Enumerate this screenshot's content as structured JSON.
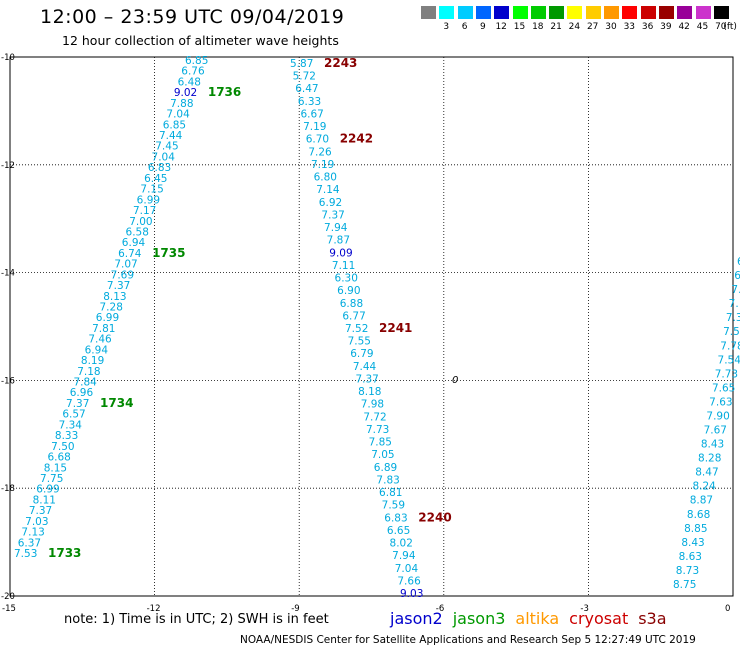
{
  "header": {
    "title": "12:00 – 23:59 UTC 09/04/2019",
    "subtitle": "12 hour collection of altimeter wave heights"
  },
  "legend": {
    "unit": "(ft)",
    "items": [
      {
        "label": "",
        "color": "#808080"
      },
      {
        "label": "3",
        "color": "#00ffff"
      },
      {
        "label": "6",
        "color": "#00ccff"
      },
      {
        "label": "9",
        "color": "#0066ff"
      },
      {
        "label": "12",
        "color": "#0000cc"
      },
      {
        "label": "15",
        "color": "#00ff00"
      },
      {
        "label": "18",
        "color": "#00cc00"
      },
      {
        "label": "21",
        "color": "#009900"
      },
      {
        "label": "24",
        "color": "#ffff00"
      },
      {
        "label": "27",
        "color": "#ffcc00"
      },
      {
        "label": "30",
        "color": "#ff9900"
      },
      {
        "label": "33",
        "color": "#ff0000"
      },
      {
        "label": "36",
        "color": "#cc0000"
      },
      {
        "label": "39",
        "color": "#990000"
      },
      {
        "label": "42",
        "color": "#990099"
      },
      {
        "label": "45",
        "color": "#cc33cc"
      },
      {
        "label": "70",
        "color": "#000000"
      }
    ]
  },
  "map": {
    "lon_range": [
      -15,
      0
    ],
    "lat_range": [
      -20,
      -10
    ],
    "lon_ticks": [
      "-15",
      "-12",
      "-9",
      "-6",
      "-3",
      "0"
    ],
    "lat_ticks": [
      "-10",
      "-12",
      "-14",
      "-16",
      "-18",
      "-20"
    ],
    "grid": true,
    "colors": {
      "cyan": "#00aadd",
      "blue": "#0000cc",
      "green": "#008800",
      "darkred": "#880000"
    },
    "track_a": {
      "points": [
        [
          "6.85",
          "cyan"
        ],
        [
          "6.76",
          "cyan"
        ],
        [
          "6.48",
          "cyan"
        ],
        [
          "9.02",
          "blue"
        ],
        [
          "7.88",
          "cyan"
        ],
        [
          "7.04",
          "cyan"
        ],
        [
          "6.85",
          "cyan"
        ],
        [
          "7.44",
          "cyan"
        ],
        [
          "7.45",
          "cyan"
        ],
        [
          "7.04",
          "cyan"
        ],
        [
          "6.83",
          "cyan"
        ],
        [
          "6.45",
          "cyan"
        ],
        [
          "7.15",
          "cyan"
        ],
        [
          "6.99",
          "cyan"
        ],
        [
          "7.17",
          "cyan"
        ],
        [
          "7.00",
          "cyan"
        ],
        [
          "6.58",
          "cyan"
        ],
        [
          "6.94",
          "cyan"
        ],
        [
          "6.74",
          "cyan"
        ],
        [
          "7.07",
          "cyan"
        ],
        [
          "7.69",
          "cyan"
        ],
        [
          "7.37",
          "cyan"
        ],
        [
          "8.13",
          "cyan"
        ],
        [
          "7.28",
          "cyan"
        ],
        [
          "6.99",
          "cyan"
        ],
        [
          "7.81",
          "cyan"
        ],
        [
          "7.46",
          "cyan"
        ],
        [
          "6.94",
          "cyan"
        ],
        [
          "8.19",
          "cyan"
        ],
        [
          "7.18",
          "cyan"
        ],
        [
          "7.84",
          "cyan"
        ],
        [
          "6.96",
          "cyan"
        ],
        [
          "7.37",
          "cyan"
        ],
        [
          "6.57",
          "cyan"
        ],
        [
          "7.34",
          "cyan"
        ],
        [
          "8.33",
          "cyan"
        ],
        [
          "7.50",
          "cyan"
        ],
        [
          "6.68",
          "cyan"
        ],
        [
          "8.15",
          "cyan"
        ],
        [
          "7.75",
          "cyan"
        ],
        [
          "6.99",
          "cyan"
        ],
        [
          "8.11",
          "cyan"
        ],
        [
          "7.37",
          "cyan"
        ],
        [
          "7.03",
          "cyan"
        ],
        [
          "7.13",
          "cyan"
        ],
        [
          "6.37",
          "cyan"
        ],
        [
          "7.53",
          "cyan"
        ]
      ],
      "times": [
        {
          "label": "1736",
          "index": 3,
          "color": "green"
        },
        {
          "label": "1735",
          "index": 18,
          "color": "green"
        },
        {
          "label": "1734",
          "index": 32,
          "color": "green"
        },
        {
          "label": "1733",
          "index": 46,
          "color": "green"
        }
      ]
    },
    "track_b": {
      "points": [
        [
          "5.87",
          "cyan"
        ],
        [
          "5.72",
          "cyan"
        ],
        [
          "6.47",
          "cyan"
        ],
        [
          "6.33",
          "cyan"
        ],
        [
          "6.67",
          "cyan"
        ],
        [
          "7.19",
          "cyan"
        ],
        [
          "6.70",
          "cyan"
        ],
        [
          "7.26",
          "cyan"
        ],
        [
          "7.19",
          "cyan"
        ],
        [
          "6.80",
          "cyan"
        ],
        [
          "7.14",
          "cyan"
        ],
        [
          "6.92",
          "cyan"
        ],
        [
          "7.37",
          "cyan"
        ],
        [
          "7.94",
          "cyan"
        ],
        [
          "7.87",
          "cyan"
        ],
        [
          "9.09",
          "blue"
        ],
        [
          "7.11",
          "cyan"
        ],
        [
          "6.30",
          "cyan"
        ],
        [
          "6.90",
          "cyan"
        ],
        [
          "6.88",
          "cyan"
        ],
        [
          "6.77",
          "cyan"
        ],
        [
          "7.52",
          "cyan"
        ],
        [
          "7.55",
          "cyan"
        ],
        [
          "6.79",
          "cyan"
        ],
        [
          "7.44",
          "cyan"
        ],
        [
          "7.37",
          "cyan"
        ],
        [
          "8.18",
          "cyan"
        ],
        [
          "7.98",
          "cyan"
        ],
        [
          "7.72",
          "cyan"
        ],
        [
          "7.73",
          "cyan"
        ],
        [
          "7.85",
          "cyan"
        ],
        [
          "7.05",
          "cyan"
        ],
        [
          "6.89",
          "cyan"
        ],
        [
          "7.83",
          "cyan"
        ],
        [
          "6.81",
          "cyan"
        ],
        [
          "7.59",
          "cyan"
        ],
        [
          "6.83",
          "cyan"
        ],
        [
          "6.65",
          "cyan"
        ],
        [
          "8.02",
          "cyan"
        ],
        [
          "7.94",
          "cyan"
        ],
        [
          "7.04",
          "cyan"
        ],
        [
          "7.66",
          "cyan"
        ],
        [
          "9.03",
          "blue"
        ]
      ],
      "times": [
        {
          "label": "2243",
          "index": 0,
          "color": "darkred"
        },
        {
          "label": "2242",
          "index": 6,
          "color": "darkred"
        },
        {
          "label": "2241",
          "index": 21,
          "color": "darkred"
        },
        {
          "label": "2240",
          "index": 36,
          "color": "darkred"
        }
      ]
    },
    "track_c": {
      "points": [
        [
          "6",
          "cyan"
        ],
        [
          "6",
          "cyan"
        ],
        [
          "7.",
          "cyan"
        ],
        [
          "7.",
          "cyan"
        ],
        [
          "7.3",
          "cyan"
        ],
        [
          "7.5",
          "cyan"
        ],
        [
          "7.78",
          "cyan"
        ],
        [
          "7.54",
          "cyan"
        ],
        [
          "7.73",
          "cyan"
        ],
        [
          "7.65",
          "cyan"
        ],
        [
          "7.63",
          "cyan"
        ],
        [
          "7.90",
          "cyan"
        ],
        [
          "7.67",
          "cyan"
        ],
        [
          "8.43",
          "cyan"
        ],
        [
          "8.28",
          "cyan"
        ],
        [
          "8.47",
          "cyan"
        ],
        [
          "8.24",
          "cyan"
        ],
        [
          "8.87",
          "cyan"
        ],
        [
          "8.68",
          "cyan"
        ],
        [
          "8.85",
          "cyan"
        ],
        [
          "8.43",
          "cyan"
        ],
        [
          "8.63",
          "cyan"
        ],
        [
          "8.73",
          "cyan"
        ],
        [
          "8.75",
          "cyan"
        ]
      ]
    },
    "marker": {
      "label": "0"
    }
  },
  "footer": {
    "note": "note:  1) Time is in UTC;  2) SWH is in feet",
    "satellites": [
      {
        "name": "jason2",
        "color": "#0000cc"
      },
      {
        "name": "jason3",
        "color": "#009900"
      },
      {
        "name": "altika",
        "color": "#ff9900"
      },
      {
        "name": "cryosat",
        "color": "#cc0000"
      },
      {
        "name": "s3a",
        "color": "#880000"
      }
    ],
    "credit": "NOAA/NESDIS Center for Satellite Applications and Research    Sep  5 12:27:49 UTC 2019"
  }
}
